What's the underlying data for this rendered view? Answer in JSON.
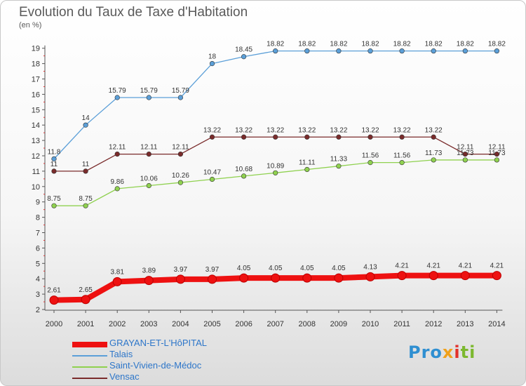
{
  "title": "Evolution du Taux de Taxe d'Habitation",
  "subtitle": "(en %)",
  "logo": {
    "p1": "Pro",
    "p2": "x",
    "p3": "i",
    "p4": "ti"
  },
  "chart_data": {
    "type": "line",
    "title": "Evolution du Taux de Taxe d'Habitation",
    "ylabel": "(en %)",
    "xlabel": "",
    "categories": [
      "2000",
      "2001",
      "2002",
      "2003",
      "2004",
      "2005",
      "2006",
      "2007",
      "2008",
      "2009",
      "2010",
      "2011",
      "2012",
      "2013",
      "2014"
    ],
    "ylim": [
      2,
      19
    ],
    "yticks": [
      2,
      3,
      4,
      5,
      6,
      7,
      8,
      9,
      10,
      11,
      12,
      13,
      14,
      15,
      16,
      17,
      18,
      19
    ],
    "grid": false,
    "legend": "bottom-left",
    "series": [
      {
        "name": "Talais",
        "color": "#5b9fd8",
        "values": [
          11.8,
          14,
          15.79,
          15.79,
          15.79,
          18,
          18.45,
          18.82,
          18.82,
          18.82,
          18.82,
          18.82,
          18.82,
          18.82,
          18.82
        ],
        "labels": [
          "11.8",
          "14",
          "15.79",
          "15.79",
          "15.79",
          "18",
          "18.45",
          "18.82",
          "18.82",
          "18.82",
          "18.82",
          "18.82",
          "18.82",
          "18.82",
          "18.82"
        ]
      },
      {
        "name": "Vensac",
        "color": "#7a2b2b",
        "values": [
          11,
          11,
          12.11,
          12.11,
          12.11,
          13.22,
          13.22,
          13.22,
          13.22,
          13.22,
          13.22,
          13.22,
          13.22,
          12.11,
          12.11
        ],
        "labels": [
          "11",
          "11",
          "12.11",
          "12.11",
          "12.11",
          "13.22",
          "13.22",
          "13.22",
          "13.22",
          "13.22",
          "13.22",
          "13.22",
          "13.22",
          "12.11",
          "12.11"
        ]
      },
      {
        "name": "Saint-Vivien-de-Médoc",
        "color": "#8fd14f",
        "values": [
          8.75,
          8.75,
          9.86,
          10.06,
          10.26,
          10.47,
          10.68,
          10.89,
          11.11,
          11.33,
          11.56,
          11.56,
          11.73,
          11.73,
          11.73
        ],
        "labels": [
          "8.75",
          "8.75",
          "9.86",
          "10.06",
          "10.26",
          "10.47",
          "10.68",
          "10.89",
          "11.11",
          "11.33",
          "11.56",
          "11.56",
          "11.73",
          "11.73",
          "11.73"
        ]
      },
      {
        "name": "GRAYAN-ET-L'HôPITAL",
        "color": "#ee1111",
        "values": [
          2.61,
          2.65,
          3.81,
          3.89,
          3.97,
          3.97,
          4.05,
          4.05,
          4.05,
          4.05,
          4.13,
          4.21,
          4.21,
          4.21,
          4.21
        ],
        "labels": [
          "2.61",
          "2.65",
          "3.81",
          "3.89",
          "3.97",
          "3.97",
          "4.05",
          "4.05",
          "4.05",
          "4.05",
          "4.13",
          "4.21",
          "4.21",
          "4.21",
          "4.21"
        ]
      }
    ],
    "legend_order": [
      "GRAYAN-ET-L'HôPITAL",
      "Talais",
      "Saint-Vivien-de-Médoc",
      "Vensac"
    ]
  }
}
